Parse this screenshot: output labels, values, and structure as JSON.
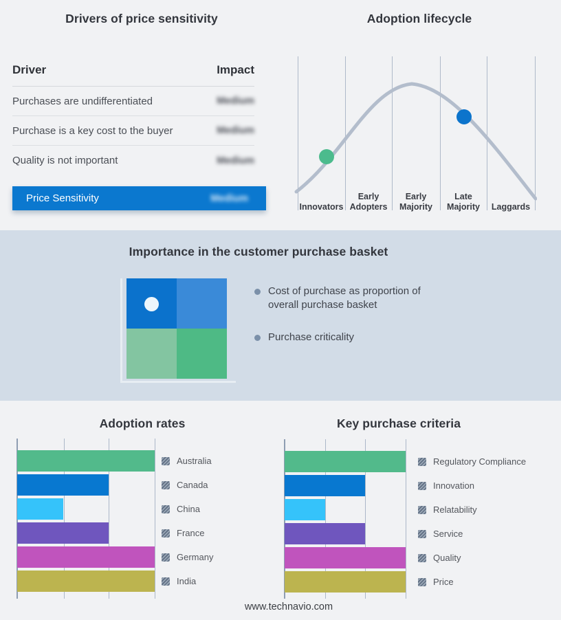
{
  "colors": {
    "page_bg": "#f1f2f4",
    "band_bg": "#d2dce7",
    "accent_blue": "#0b78cf",
    "curve": "#b3bdcc",
    "gridline": "#abb7c8"
  },
  "drivers_table": {
    "title": "Drivers of price sensitivity",
    "columns": {
      "driver": "Driver",
      "impact": "Impact"
    },
    "rows": [
      {
        "driver": "Purchases are undifferentiated",
        "impact": "Medium"
      },
      {
        "driver": "Purchase is a key cost to the buyer",
        "impact": "Medium"
      },
      {
        "driver": "Quality is not important",
        "impact": "Medium"
      }
    ],
    "summary_row": {
      "label": "Price Sensitivity",
      "impact": "Medium"
    },
    "impact_values_blurred": true
  },
  "adoption_lifecycle": {
    "title": "Adoption lifecycle",
    "stages": [
      {
        "label": "Innovators"
      },
      {
        "label": "Early Adopters"
      },
      {
        "label": "Early Majority"
      },
      {
        "label": "Late Majority"
      },
      {
        "label": "Laggards"
      }
    ],
    "markers": [
      {
        "stage": "Innovators",
        "color": "#4cbb8d"
      },
      {
        "stage": "Late Majority",
        "color": "#0c74cc"
      }
    ]
  },
  "purchase_basket": {
    "title": "Importance in the customer purchase basket",
    "bullets": [
      "Cost of purchase as proportion of overall purchase basket",
      "Purchase criticality"
    ],
    "matrix_colors": {
      "top_left": "#0b72cc",
      "top_right": "#3a8ad8",
      "bottom_left": "#83c5a1",
      "bottom_right": "#4eba85"
    },
    "marker_quadrant": "top_left"
  },
  "chart_data": [
    {
      "name": "adoption_lifecycle",
      "type": "line",
      "title": "Adoption lifecycle",
      "x_categories": [
        "Innovators",
        "Early Adopters",
        "Early Majority",
        "Late Majority",
        "Laggards"
      ],
      "shape": "bell curve peaking at Early Majority",
      "grid": true,
      "markers": [
        {
          "stage": "Innovators",
          "color": "#4cbb8d"
        },
        {
          "stage": "Late Majority",
          "color": "#0c74cc"
        }
      ]
    },
    {
      "name": "adoption_rates",
      "type": "bar",
      "title": "Adoption rates",
      "orientation": "horizontal",
      "categories": [
        "Australia",
        "Canada",
        "China",
        "France",
        "Germany",
        "India"
      ],
      "values": [
        3,
        2,
        1,
        2,
        3,
        3
      ],
      "xlim": [
        0,
        3
      ],
      "grid": true,
      "legend_position": "right",
      "colors": [
        "#52ba8b",
        "#0878d0",
        "#35c3fa",
        "#6f56be",
        "#c054bd",
        "#bcb44f"
      ]
    },
    {
      "name": "key_purchase_criteria",
      "type": "bar",
      "title": "Key purchase criteria",
      "orientation": "horizontal",
      "categories": [
        "Regulatory Compliance",
        "Innovation",
        "Relatability",
        "Service",
        "Quality",
        "Price"
      ],
      "values": [
        3,
        2,
        1,
        2,
        3,
        3
      ],
      "xlim": [
        0,
        3
      ],
      "grid": true,
      "legend_position": "right",
      "colors": [
        "#52ba8b",
        "#0878d0",
        "#35c3fa",
        "#6f56be",
        "#c054bd",
        "#bcb44f"
      ]
    }
  ],
  "footer": {
    "url": "www.technavio.com"
  }
}
